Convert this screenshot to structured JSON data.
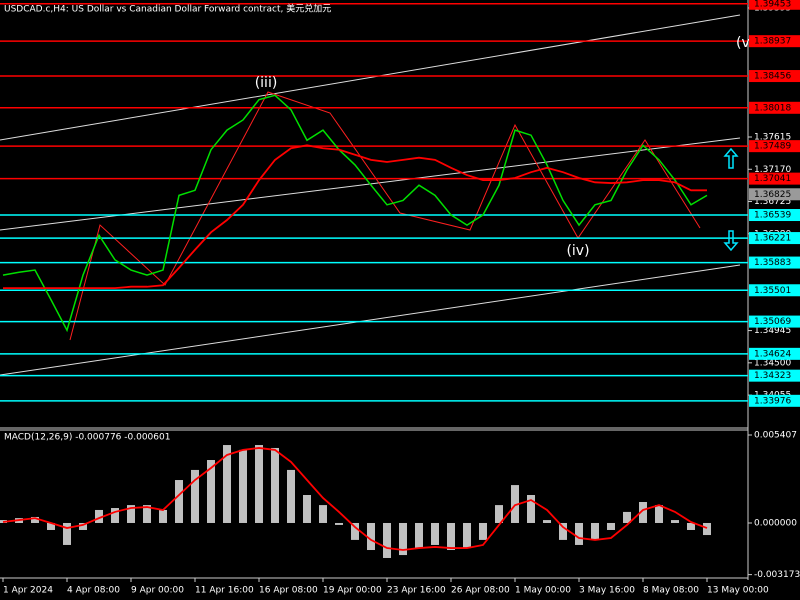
{
  "chart_data": [
    {
      "type": "line",
      "title": "USDCAD.c,H4: US Dollar vs Canadian Dollar Forward contract, 美元兑加元",
      "categories": [
        "1 Apr 2024",
        null,
        null,
        null,
        "4 Apr 08:00",
        null,
        null,
        null,
        "9 Apr 00:00",
        null,
        null,
        null,
        "11 Apr 16:00",
        null,
        null,
        null,
        "16 Apr 08:00",
        null,
        null,
        null,
        "19 Apr 00:00",
        null,
        null,
        null,
        "23 Apr 16:00",
        null,
        null,
        null,
        "26 Apr 08:00",
        null,
        null,
        null,
        "1 May 00:00",
        null,
        null,
        null,
        "3 May 16:00",
        null,
        null,
        null,
        "8 May 08:00",
        null,
        null,
        null,
        "13 May 00:00"
      ],
      "series": [
        {
          "color": "#00e000",
          "values": [
            1.3571,
            1.3575,
            1.3578,
            1.3537,
            1.3495,
            1.3571,
            1.3626,
            1.3592,
            1.3578,
            1.3571,
            1.3578,
            1.3681,
            1.3688,
            1.3744,
            1.3771,
            1.3785,
            1.3813,
            1.3819,
            1.3799,
            1.3757,
            1.3771,
            1.3744,
            1.3723,
            1.3695,
            1.3668,
            1.3674,
            1.3695,
            1.3681,
            1.3654,
            1.364,
            1.3654,
            1.3695,
            1.3771,
            1.3764,
            1.3723,
            1.3674,
            1.364,
            1.3668,
            1.3674,
            1.3716,
            1.375,
            1.373,
            1.3702,
            1.3668,
            1.3681
          ]
        },
        {
          "color": "#ff0000",
          "values": [
            1.3553,
            1.3553,
            1.3553,
            1.3553,
            1.3553,
            1.3553,
            1.3553,
            1.3553,
            1.3555,
            1.3555,
            1.3557,
            1.3581,
            1.3606,
            1.363,
            1.3647,
            1.3668,
            1.3702,
            1.373,
            1.3746,
            1.375,
            1.3746,
            1.3744,
            1.3737,
            1.373,
            1.3727,
            1.373,
            1.3733,
            1.373,
            1.3719,
            1.3709,
            1.3702,
            1.3702,
            1.3705,
            1.3713,
            1.3719,
            1.3713,
            1.3705,
            1.3699,
            1.3698,
            1.3699,
            1.3702,
            1.3702,
            1.3699,
            1.3688,
            1.3688
          ]
        }
      ],
      "ylim": [
        1.33601,
        1.39505
      ],
      "yticks": [
        1.39395,
        1.37615,
        {
          "value": 1.3717,
          "label": "1.37170"
        },
        1.36725,
        {
          "value": 1.3628,
          "label": "1.36280"
        },
        1.34945,
        {
          "value": 1.345,
          "label": "1.34500"
        },
        1.34055
      ],
      "resistance_levels": {
        "color": "#ff0000",
        "values": [
          1.39453,
          1.38937,
          1.38456,
          1.38018,
          1.37489,
          1.37041
        ]
      },
      "support_levels": {
        "color": "#00ffff",
        "values": [
          1.36539,
          1.36221,
          1.35883,
          1.35501,
          1.35069,
          1.34624,
          1.34323,
          1.33976
        ]
      },
      "current_price": 1.36825,
      "annotations": [
        "(iii)",
        "(iv)",
        "(v"
      ]
    },
    {
      "type": "macd",
      "label": "MACD(12,26,9) -0.000776 -0.000601",
      "series": [
        {
          "color": "#c0c0c0",
          "values": [
            0.00018,
            0.0003,
            0.00037,
            -0.00043,
            -0.00135,
            -0.00043,
            0.0008,
            0.00092,
            0.0011,
            0.0011,
            0.0008,
            0.00264,
            0.00326,
            0.00387,
            0.00479,
            0.00449,
            0.00479,
            0.00461,
            0.00326,
            0.00172,
            0.0011,
            -0.00012,
            -0.00104,
            -0.00166,
            -0.00215,
            -0.00197,
            -0.00154,
            -0.00135,
            -0.00166,
            -0.00154,
            -0.00104,
            0.0011,
            0.00233,
            0.00172,
            0.00018,
            -0.00104,
            -0.00135,
            -0.00104,
            -0.00043,
            0.00068,
            0.00129,
            0.0011,
            0.00018,
            -0.00043,
            -0.00074
          ]
        },
        {
          "color": "#ff0000",
          "values": [
            6e-05,
            0.00018,
            0.0003,
            0,
            -0.00031,
            -0.00012,
            0.0003,
            0.00068,
            0.00092,
            0.00098,
            0.0008,
            0.00172,
            0.00264,
            0.00338,
            0.00418,
            0.00449,
            0.00461,
            0.00449,
            0.00375,
            0.00264,
            0.00154,
            0.00068,
            -0.00025,
            -0.00104,
            -0.00154,
            -0.00166,
            -0.00154,
            -0.00147,
            -0.00154,
            -0.00154,
            -0.00135,
            -0.00012,
            0.0011,
            0.00141,
            0.0008,
            -0.00025,
            -0.00092,
            -0.00104,
            -0.00092,
            -0.00012,
            0.0008,
            0.0011,
            0.00068,
            6e-05,
            -0.00031
          ]
        }
      ],
      "ylim": [
        -0.00338,
        0.005714
      ],
      "yticks": [
        0.005407,
        {
          "value": 0,
          "label": "0.000000"
        },
        -0.003173
      ]
    }
  ]
}
